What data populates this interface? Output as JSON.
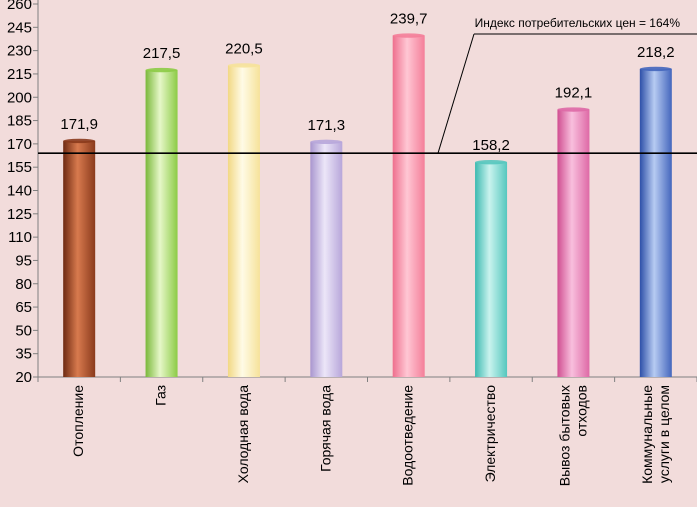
{
  "chart_data": {
    "type": "bar",
    "title": "",
    "xlabel": "",
    "ylabel": "",
    "ylim": [
      20,
      260
    ],
    "yticks": [
      20,
      35,
      50,
      65,
      80,
      95,
      110,
      125,
      140,
      155,
      170,
      185,
      200,
      215,
      230,
      245,
      260
    ],
    "categories": [
      [
        "Отопление"
      ],
      [
        "Газ"
      ],
      [
        "Холодная вода"
      ],
      [
        "Горячая вода"
      ],
      [
        "Водоотведение"
      ],
      [
        "Электричество"
      ],
      [
        "Вывоз бытовых",
        "отходов"
      ],
      [
        "Коммунальные",
        "услуги в целом"
      ]
    ],
    "values": [
      171.9,
      217.5,
      220.5,
      171.3,
      239.7,
      158.2,
      192.1,
      218.2
    ],
    "value_labels": [
      "171,9",
      "217,5",
      "220,5",
      "171,3",
      "239,7",
      "158,2",
      "192,1",
      "218,2"
    ],
    "bar_colors": [
      [
        "#6e2a12",
        "#d87a4e",
        "#8a3a1c"
      ],
      [
        "#7ab83a",
        "#e6f7c8",
        "#8ccb45"
      ],
      [
        "#f2d884",
        "#fffbe6",
        "#f6e29a"
      ],
      [
        "#a996cf",
        "#ece6f8",
        "#b7a6da"
      ],
      [
        "#ee6f8d",
        "#ffc7d4",
        "#f47e99"
      ],
      [
        "#3cb9b0",
        "#c9f3ee",
        "#55c7be"
      ],
      [
        "#d04e91",
        "#f8bfdd",
        "#de69a6"
      ],
      [
        "#2d4fa8",
        "#b7cbf2",
        "#4466bd"
      ]
    ],
    "grid": false,
    "reference_line": {
      "value": 164,
      "label": "Индекс потребительских цен = 164%"
    }
  }
}
